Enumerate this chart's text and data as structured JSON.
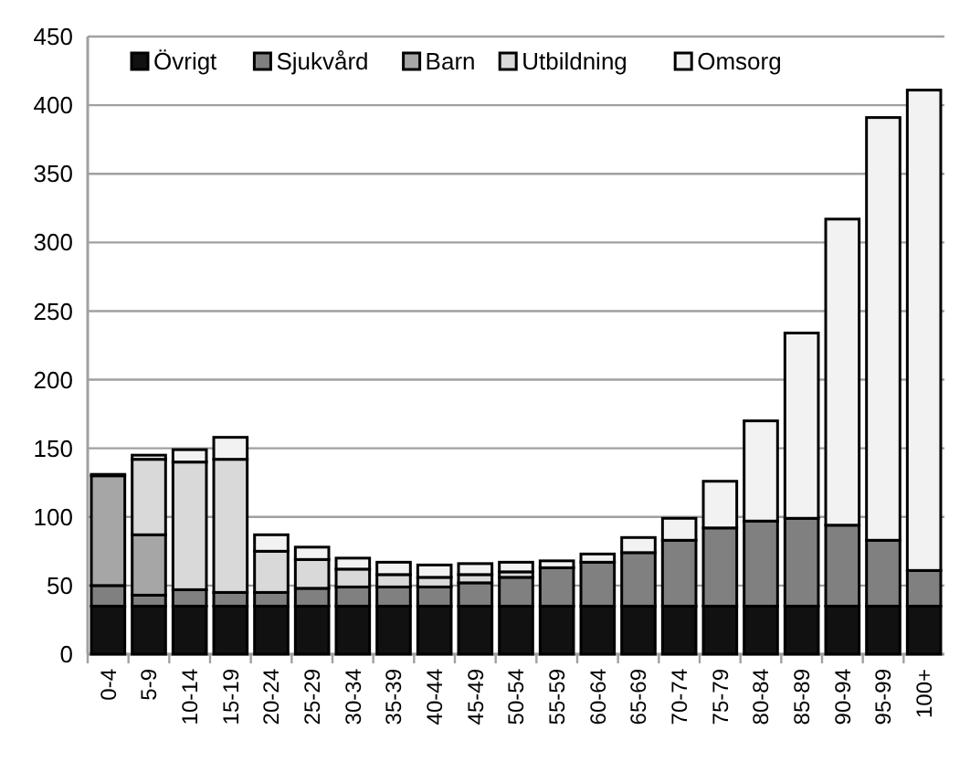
{
  "chart_data": {
    "type": "bar",
    "stacked": true,
    "categories": [
      "0-4",
      "5-9",
      "10-14",
      "15-19",
      "20-24",
      "25-29",
      "30-34",
      "35-39",
      "40-44",
      "45-49",
      "50-54",
      "55-59",
      "60-64",
      "65-69",
      "70-74",
      "75-79",
      "80-84",
      "85-89",
      "90-94",
      "95-99",
      "100+"
    ],
    "series": [
      {
        "name": "Övrigt",
        "color": "#111111",
        "values": [
          35,
          35,
          35,
          35,
          35,
          35,
          35,
          35,
          35,
          35,
          35,
          35,
          35,
          35,
          35,
          35,
          35,
          35,
          35,
          35,
          35
        ]
      },
      {
        "name": "Sjukvård",
        "color": "#808080",
        "values": [
          15,
          8,
          12,
          10,
          10,
          13,
          14,
          14,
          14,
          17,
          21,
          28,
          32,
          39,
          48,
          57,
          62,
          64,
          59,
          48,
          26
        ]
      },
      {
        "name": "Barn",
        "color": "#a6a6a6",
        "values": [
          80,
          44,
          null,
          0,
          0,
          0,
          0,
          0,
          0,
          0,
          0,
          0,
          0,
          0,
          0,
          0,
          0,
          0,
          0,
          0,
          0
        ]
      },
      {
        "name": "Utbildning",
        "color": "#d9d9d9",
        "values": [
          1,
          55,
          93,
          97,
          30,
          21,
          13,
          9,
          7,
          6,
          4,
          null,
          null,
          0,
          0,
          0,
          0,
          0,
          0,
          0,
          0
        ]
      },
      {
        "name": "Omsorg",
        "color": "#f2f2f2",
        "values": [
          0,
          3,
          9,
          16,
          12,
          9,
          8,
          9,
          9,
          8,
          7,
          5,
          6,
          11,
          16,
          34,
          73,
          135,
          223,
          308,
          350
        ]
      }
    ],
    "ylim": [
      0,
      450
    ],
    "yticks": [
      0,
      50,
      100,
      150,
      200,
      250,
      300,
      350,
      400,
      450
    ],
    "grid": "y",
    "legend": "top left"
  }
}
